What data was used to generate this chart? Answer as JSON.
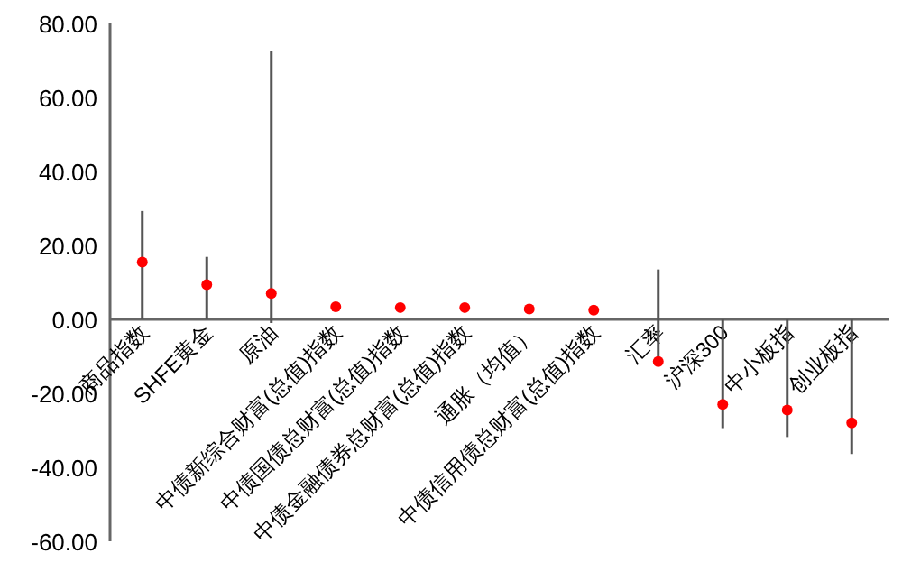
{
  "chart_data": {
    "type": "scatter",
    "categories": [
      "商品指数",
      "SHFE黄金",
      "原油",
      "中债新综合财富(总值)指数",
      "中债国债总财富(总值)指数",
      "中债金融债券总财富(总值)指数",
      "通胀（均值）",
      "中债信用债总财富(总值)指数",
      "汇率",
      "沪深300",
      "中小板指",
      "创业板指"
    ],
    "values": [
      15.5,
      9.4,
      7.0,
      3.4,
      3.2,
      3.2,
      2.8,
      2.5,
      -11.4,
      -23.0,
      -24.5,
      -28.0
    ],
    "errors": [
      [
        0,
        29.3
      ],
      [
        0,
        16.9
      ],
      [
        -1,
        72.5
      ],
      null,
      null,
      null,
      null,
      null,
      [
        -11.5,
        13.5
      ],
      [
        -29.4,
        0
      ],
      [
        -31.8,
        0
      ],
      [
        -36.4,
        0
      ]
    ],
    "color": "#ff0000",
    "marker": "circle",
    "ylim": [
      -60,
      80
    ],
    "yticks": [
      {
        "value": -60,
        "label": "-60.00"
      },
      {
        "value": -40,
        "label": "-40.00"
      },
      {
        "value": -20,
        "label": "-20.00"
      },
      {
        "value": 0,
        "label": "0.00"
      },
      {
        "value": 20,
        "label": "20.00"
      },
      {
        "value": 40,
        "label": "40.00"
      },
      {
        "value": 60,
        "label": "60.00"
      },
      {
        "value": 80,
        "label": "80.00"
      }
    ],
    "grid": false
  }
}
